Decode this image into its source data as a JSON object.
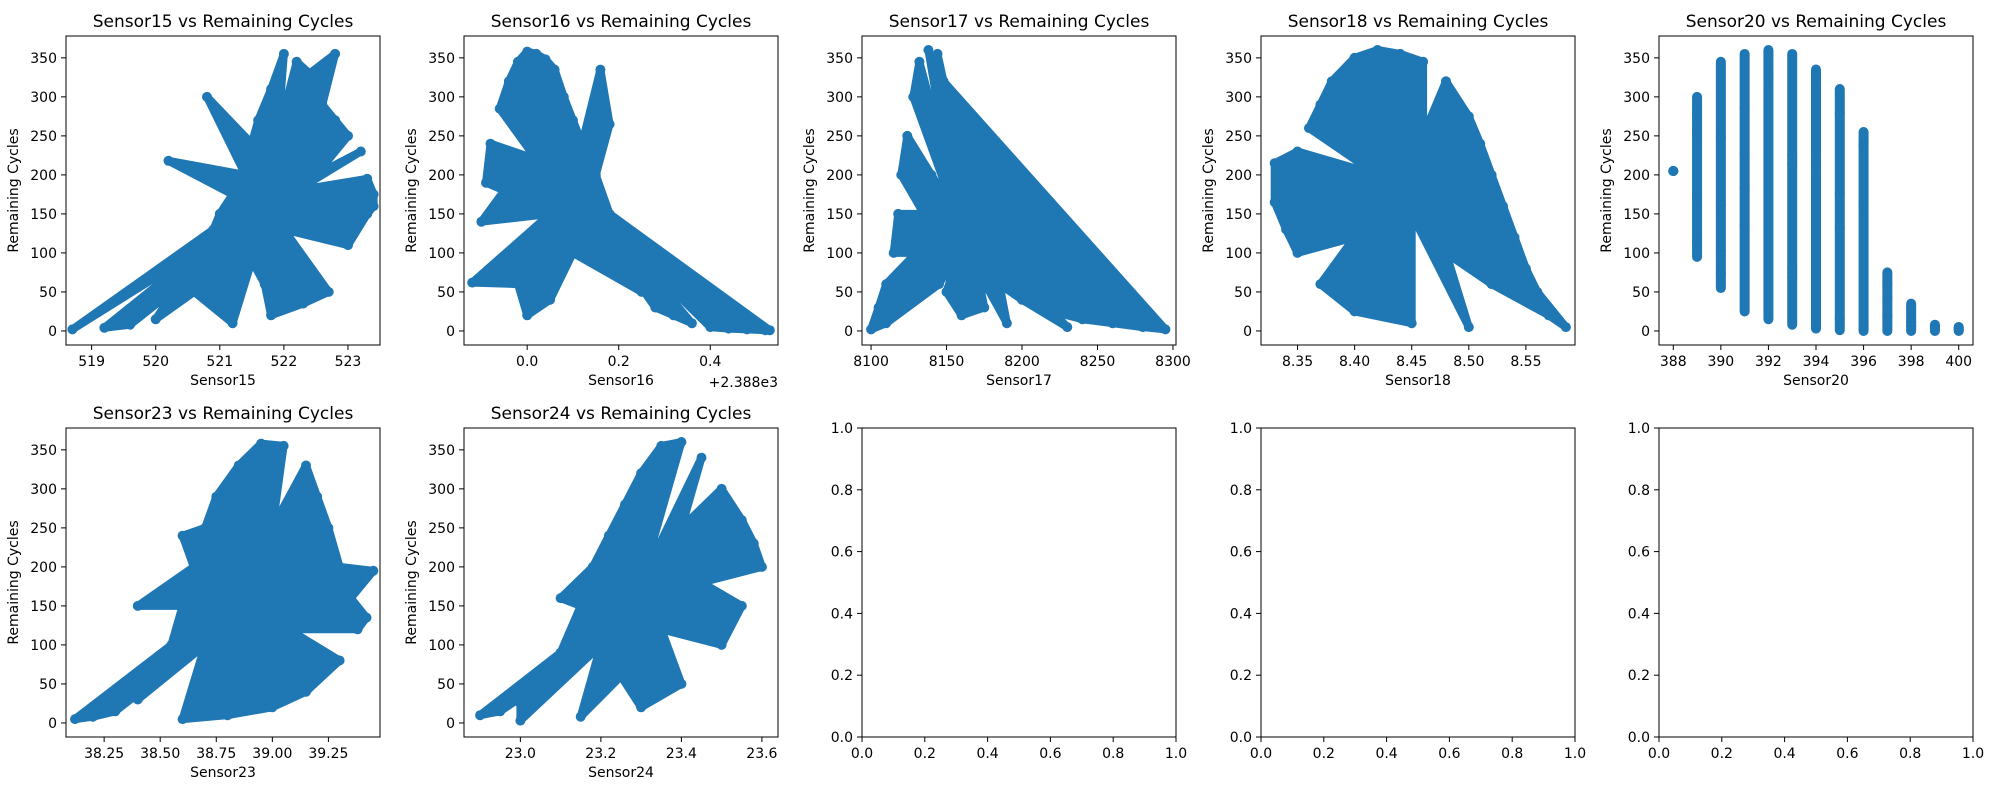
{
  "chart_data": [
    {
      "type": "scatter",
      "title": "Sensor15 vs Remaining Cycles",
      "xlabel": "Sensor15",
      "ylabel": "Remaining Cycles",
      "xlim": [
        518.6,
        523.5
      ],
      "ylim": [
        -18,
        378
      ],
      "xticks": [
        519,
        520,
        521,
        522,
        523
      ],
      "xtick_labels": [
        "519",
        "520",
        "521",
        "522",
        "523"
      ],
      "yticks": [
        0,
        50,
        100,
        150,
        200,
        250,
        300,
        350
      ],
      "ytick_labels": [
        "0",
        "50",
        "100",
        "150",
        "200",
        "250",
        "300",
        "350"
      ],
      "offset_text": "",
      "color": "#1f77b4",
      "points": [
        [
          518.7,
          2
        ],
        [
          519.2,
          4
        ],
        [
          519.6,
          8
        ],
        [
          520.0,
          15
        ],
        [
          520.2,
          40
        ],
        [
          520.4,
          60
        ],
        [
          520.6,
          50
        ],
        [
          520.8,
          110
        ],
        [
          521.0,
          150
        ],
        [
          521.2,
          175
        ],
        [
          521.4,
          200
        ],
        [
          521.5,
          240
        ],
        [
          521.6,
          270
        ],
        [
          521.8,
          310
        ],
        [
          522.0,
          355
        ],
        [
          522.2,
          345
        ],
        [
          522.4,
          330
        ],
        [
          522.6,
          290
        ],
        [
          522.8,
          270
        ],
        [
          523.0,
          250
        ],
        [
          523.2,
          230
        ],
        [
          523.3,
          195
        ],
        [
          523.4,
          175
        ],
        [
          523.3,
          150
        ],
        [
          523.0,
          110
        ],
        [
          522.7,
          50
        ],
        [
          522.3,
          35
        ],
        [
          521.8,
          20
        ],
        [
          521.2,
          10
        ],
        [
          520.2,
          218
        ],
        [
          520.8,
          300
        ],
        [
          522.8,
          355
        ],
        [
          523.4,
          160
        ],
        [
          521.5,
          90
        ],
        [
          522.0,
          130
        ],
        [
          522.5,
          200
        ],
        [
          520.9,
          130
        ],
        [
          521.9,
          250
        ],
        [
          522.2,
          180
        ],
        [
          521.7,
          60
        ]
      ]
    },
    {
      "type": "scatter",
      "title": "Sensor16 vs Remaining Cycles",
      "xlabel": "Sensor16",
      "ylabel": "Remaining Cycles",
      "xlim": [
        -0.138,
        0.548
      ],
      "ylim": [
        -18,
        378
      ],
      "xticks": [
        0.0,
        0.2,
        0.4
      ],
      "xtick_labels": [
        "0.0",
        "0.2",
        "0.4"
      ],
      "yticks": [
        0,
        50,
        100,
        150,
        200,
        250,
        300,
        350
      ],
      "ytick_labels": [
        "0",
        "50",
        "100",
        "150",
        "200",
        "250",
        "300",
        "350"
      ],
      "offset_text": "+2.388e3",
      "color": "#1f77b4",
      "points": [
        [
          -0.12,
          62
        ],
        [
          -0.1,
          140
        ],
        [
          -0.09,
          190
        ],
        [
          -0.08,
          240
        ],
        [
          -0.06,
          285
        ],
        [
          -0.04,
          320
        ],
        [
          -0.02,
          345
        ],
        [
          0.0,
          358
        ],
        [
          0.02,
          355
        ],
        [
          0.04,
          348
        ],
        [
          0.06,
          335
        ],
        [
          0.08,
          300
        ],
        [
          0.1,
          270
        ],
        [
          0.12,
          240
        ],
        [
          0.15,
          200
        ],
        [
          0.18,
          150
        ],
        [
          0.2,
          120
        ],
        [
          0.22,
          80
        ],
        [
          0.25,
          50
        ],
        [
          0.28,
          30
        ],
        [
          0.32,
          20
        ],
        [
          0.36,
          10
        ],
        [
          0.4,
          5
        ],
        [
          0.44,
          3
        ],
        [
          0.48,
          2
        ],
        [
          0.52,
          1
        ],
        [
          0.53,
          1
        ],
        [
          0.16,
          335
        ],
        [
          0.18,
          265
        ],
        [
          0.0,
          20
        ],
        [
          0.05,
          40
        ],
        [
          -0.02,
          60
        ],
        [
          0.05,
          150
        ],
        [
          0.1,
          100
        ],
        [
          0.02,
          220
        ],
        [
          -0.05,
          180
        ]
      ]
    },
    {
      "type": "scatter",
      "title": "Sensor17 vs Remaining Cycles",
      "xlabel": "Sensor17",
      "ylabel": "Remaining Cycles",
      "xlim": [
        8094,
        8302
      ],
      "ylim": [
        -18,
        378
      ],
      "xticks": [
        8100,
        8150,
        8200,
        8250,
        8300
      ],
      "xtick_labels": [
        "8100",
        "8150",
        "8200",
        "8250",
        "8300"
      ],
      "yticks": [
        0,
        50,
        100,
        150,
        200,
        250,
        300,
        350
      ],
      "ytick_labels": [
        "0",
        "50",
        "100",
        "150",
        "200",
        "250",
        "300",
        "350"
      ],
      "offset_text": "",
      "color": "#1f77b4",
      "points": [
        [
          8100,
          2
        ],
        [
          8105,
          30
        ],
        [
          8110,
          60
        ],
        [
          8115,
          100
        ],
        [
          8118,
          150
        ],
        [
          8120,
          200
        ],
        [
          8124,
          250
        ],
        [
          8128,
          300
        ],
        [
          8132,
          345
        ],
        [
          8138,
          360
        ],
        [
          8144,
          355
        ],
        [
          8148,
          320
        ],
        [
          8150,
          270
        ],
        [
          8152,
          200
        ],
        [
          8156,
          150
        ],
        [
          8160,
          110
        ],
        [
          8170,
          80
        ],
        [
          8185,
          60
        ],
        [
          8200,
          40
        ],
        [
          8220,
          25
        ],
        [
          8240,
          15
        ],
        [
          8260,
          10
        ],
        [
          8280,
          5
        ],
        [
          8295,
          2
        ],
        [
          8130,
          100
        ],
        [
          8140,
          200
        ],
        [
          8145,
          60
        ],
        [
          8110,
          10
        ],
        [
          8160,
          20
        ],
        [
          8190,
          10
        ],
        [
          8230,
          5
        ],
        [
          8135,
          150
        ],
        [
          8150,
          50
        ],
        [
          8175,
          30
        ]
      ]
    },
    {
      "type": "scatter",
      "title": "Sensor18 vs Remaining Cycles",
      "xlabel": "Sensor18",
      "ylabel": "Remaining Cycles",
      "xlim": [
        8.318,
        8.593
      ],
      "ylim": [
        -18,
        378
      ],
      "xticks": [
        8.35,
        8.4,
        8.45,
        8.5,
        8.55
      ],
      "xtick_labels": [
        "8.35",
        "8.40",
        "8.45",
        "8.50",
        "8.55"
      ],
      "yticks": [
        0,
        50,
        100,
        150,
        200,
        250,
        300,
        350
      ],
      "ytick_labels": [
        "0",
        "50",
        "100",
        "150",
        "200",
        "250",
        "300",
        "350"
      ],
      "offset_text": "",
      "color": "#1f77b4",
      "points": [
        [
          8.33,
          165
        ],
        [
          8.33,
          215
        ],
        [
          8.35,
          230
        ],
        [
          8.36,
          260
        ],
        [
          8.37,
          290
        ],
        [
          8.38,
          320
        ],
        [
          8.4,
          350
        ],
        [
          8.42,
          360
        ],
        [
          8.44,
          355
        ],
        [
          8.46,
          345
        ],
        [
          8.48,
          320
        ],
        [
          8.5,
          275
        ],
        [
          8.51,
          240
        ],
        [
          8.52,
          200
        ],
        [
          8.53,
          160
        ],
        [
          8.54,
          120
        ],
        [
          8.55,
          80
        ],
        [
          8.56,
          50
        ],
        [
          8.57,
          20
        ],
        [
          8.585,
          5
        ],
        [
          8.5,
          5
        ],
        [
          8.45,
          10
        ],
        [
          8.4,
          25
        ],
        [
          8.37,
          60
        ],
        [
          8.35,
          100
        ],
        [
          8.34,
          130
        ],
        [
          8.45,
          150
        ],
        [
          8.42,
          200
        ],
        [
          8.48,
          100
        ],
        [
          8.4,
          120
        ],
        [
          8.52,
          60
        ],
        [
          8.46,
          250
        ]
      ]
    },
    {
      "type": "scatter",
      "title": "Sensor20 vs Remaining Cycles",
      "xlabel": "Sensor20",
      "ylabel": "Remaining Cycles",
      "xlim": [
        387.4,
        400.6
      ],
      "ylim": [
        -18,
        378
      ],
      "xticks": [
        388,
        390,
        392,
        394,
        396,
        398,
        400
      ],
      "xtick_labels": [
        "388",
        "390",
        "392",
        "394",
        "396",
        "398",
        "400"
      ],
      "yticks": [
        0,
        50,
        100,
        150,
        200,
        250,
        300,
        350
      ],
      "ytick_labels": [
        "0",
        "50",
        "100",
        "150",
        "200",
        "250",
        "300",
        "350"
      ],
      "offset_text": "",
      "color": "#1f77b4",
      "bands": [
        {
          "x": 388,
          "low": 205,
          "high": 205
        },
        {
          "x": 389,
          "low": 95,
          "high": 300
        },
        {
          "x": 390,
          "low": 55,
          "high": 345
        },
        {
          "x": 391,
          "low": 25,
          "high": 355
        },
        {
          "x": 392,
          "low": 15,
          "high": 360
        },
        {
          "x": 393,
          "low": 8,
          "high": 355
        },
        {
          "x": 394,
          "low": 3,
          "high": 335
        },
        {
          "x": 395,
          "low": 1,
          "high": 310
        },
        {
          "x": 396,
          "low": 0,
          "high": 255
        },
        {
          "x": 397,
          "low": 0,
          "high": 75
        },
        {
          "x": 398,
          "low": 0,
          "high": 35
        },
        {
          "x": 399,
          "low": 0,
          "high": 8
        },
        {
          "x": 400,
          "low": 0,
          "high": 5
        }
      ]
    },
    {
      "type": "scatter",
      "title": "Sensor23 vs Remaining Cycles",
      "xlabel": "Sensor23",
      "ylabel": "Remaining Cycles",
      "xlim": [
        38.08,
        39.48
      ],
      "ylim": [
        -18,
        378
      ],
      "xticks": [
        38.25,
        38.5,
        38.75,
        39.0,
        39.25
      ],
      "xtick_labels": [
        "38.25",
        "38.50",
        "38.75",
        "39.00",
        "39.25"
      ],
      "yticks": [
        0,
        50,
        100,
        150,
        200,
        250,
        300,
        350
      ],
      "ytick_labels": [
        "0",
        "50",
        "100",
        "150",
        "200",
        "250",
        "300",
        "350"
      ],
      "offset_text": "",
      "color": "#1f77b4",
      "points": [
        [
          38.12,
          5
        ],
        [
          38.2,
          8
        ],
        [
          38.3,
          15
        ],
        [
          38.4,
          30
        ],
        [
          38.5,
          60
        ],
        [
          38.55,
          100
        ],
        [
          38.6,
          150
        ],
        [
          38.65,
          200
        ],
        [
          38.7,
          250
        ],
        [
          38.75,
          290
        ],
        [
          38.85,
          330
        ],
        [
          38.95,
          358
        ],
        [
          39.05,
          355
        ],
        [
          39.15,
          330
        ],
        [
          39.2,
          290
        ],
        [
          39.25,
          250
        ],
        [
          39.3,
          200
        ],
        [
          39.35,
          160
        ],
        [
          39.38,
          120
        ],
        [
          39.3,
          80
        ],
        [
          39.15,
          40
        ],
        [
          39.0,
          20
        ],
        [
          38.8,
          10
        ],
        [
          38.6,
          5
        ],
        [
          39.45,
          195
        ],
        [
          39.42,
          135
        ],
        [
          38.4,
          150
        ],
        [
          38.6,
          240
        ],
        [
          38.9,
          150
        ],
        [
          39.0,
          250
        ],
        [
          38.7,
          100
        ],
        [
          39.1,
          120
        ]
      ]
    },
    {
      "type": "scatter",
      "title": "Sensor24 vs Remaining Cycles",
      "xlabel": "Sensor24",
      "ylabel": "Remaining Cycles",
      "xlim": [
        22.86,
        23.64
      ],
      "ylim": [
        -18,
        378
      ],
      "xticks": [
        23.0,
        23.2,
        23.4,
        23.6
      ],
      "xtick_labels": [
        "23.0",
        "23.2",
        "23.4",
        "23.6"
      ],
      "yticks": [
        0,
        50,
        100,
        150,
        200,
        250,
        300,
        350
      ],
      "ytick_labels": [
        "0",
        "50",
        "100",
        "150",
        "200",
        "250",
        "300",
        "350"
      ],
      "offset_text": "",
      "color": "#1f77b4",
      "points": [
        [
          22.9,
          10
        ],
        [
          22.95,
          15
        ],
        [
          23.0,
          25
        ],
        [
          23.05,
          50
        ],
        [
          23.1,
          90
        ],
        [
          23.15,
          150
        ],
        [
          23.18,
          200
        ],
        [
          23.22,
          240
        ],
        [
          23.26,
          280
        ],
        [
          23.3,
          320
        ],
        [
          23.35,
          355
        ],
        [
          23.4,
          360
        ],
        [
          23.45,
          340
        ],
        [
          23.5,
          300
        ],
        [
          23.55,
          260
        ],
        [
          23.58,
          230
        ],
        [
          23.6,
          200
        ],
        [
          23.55,
          150
        ],
        [
          23.5,
          100
        ],
        [
          23.4,
          50
        ],
        [
          23.3,
          20
        ],
        [
          23.15,
          8
        ],
        [
          23.0,
          3
        ],
        [
          23.1,
          160
        ],
        [
          23.2,
          100
        ],
        [
          23.3,
          180
        ],
        [
          23.4,
          250
        ],
        [
          23.35,
          120
        ],
        [
          23.45,
          180
        ],
        [
          23.25,
          60
        ]
      ]
    },
    {
      "type": "scatter",
      "title": "",
      "xlabel": "",
      "ylabel": "",
      "xlim": [
        0,
        1
      ],
      "ylim": [
        0,
        1
      ],
      "xticks": [
        0.0,
        0.2,
        0.4,
        0.6,
        0.8,
        1.0
      ],
      "xtick_labels": [
        "0.0",
        "0.2",
        "0.4",
        "0.6",
        "0.8",
        "1.0"
      ],
      "yticks": [
        0.0,
        0.2,
        0.4,
        0.6,
        0.8,
        1.0
      ],
      "ytick_labels": [
        "0.0",
        "0.2",
        "0.4",
        "0.6",
        "0.8",
        "1.0"
      ],
      "offset_text": "",
      "color": "#1f77b4",
      "points": []
    },
    {
      "type": "scatter",
      "title": "",
      "xlabel": "",
      "ylabel": "",
      "xlim": [
        0,
        1
      ],
      "ylim": [
        0,
        1
      ],
      "xticks": [
        0.0,
        0.2,
        0.4,
        0.6,
        0.8,
        1.0
      ],
      "xtick_labels": [
        "0.0",
        "0.2",
        "0.4",
        "0.6",
        "0.8",
        "1.0"
      ],
      "yticks": [
        0.0,
        0.2,
        0.4,
        0.6,
        0.8,
        1.0
      ],
      "ytick_labels": [
        "0.0",
        "0.2",
        "0.4",
        "0.6",
        "0.8",
        "1.0"
      ],
      "offset_text": "",
      "color": "#1f77b4",
      "points": []
    },
    {
      "type": "scatter",
      "title": "",
      "xlabel": "",
      "ylabel": "",
      "xlim": [
        0,
        1
      ],
      "ylim": [
        0,
        1
      ],
      "xticks": [
        0.0,
        0.2,
        0.4,
        0.6,
        0.8,
        1.0
      ],
      "xtick_labels": [
        "0.0",
        "0.2",
        "0.4",
        "0.6",
        "0.8",
        "1.0"
      ],
      "yticks": [
        0.0,
        0.2,
        0.4,
        0.6,
        0.8,
        1.0
      ],
      "ytick_labels": [
        "0.0",
        "0.2",
        "0.4",
        "0.6",
        "0.8",
        "1.0"
      ],
      "offset_text": "",
      "color": "#1f77b4",
      "points": []
    }
  ]
}
